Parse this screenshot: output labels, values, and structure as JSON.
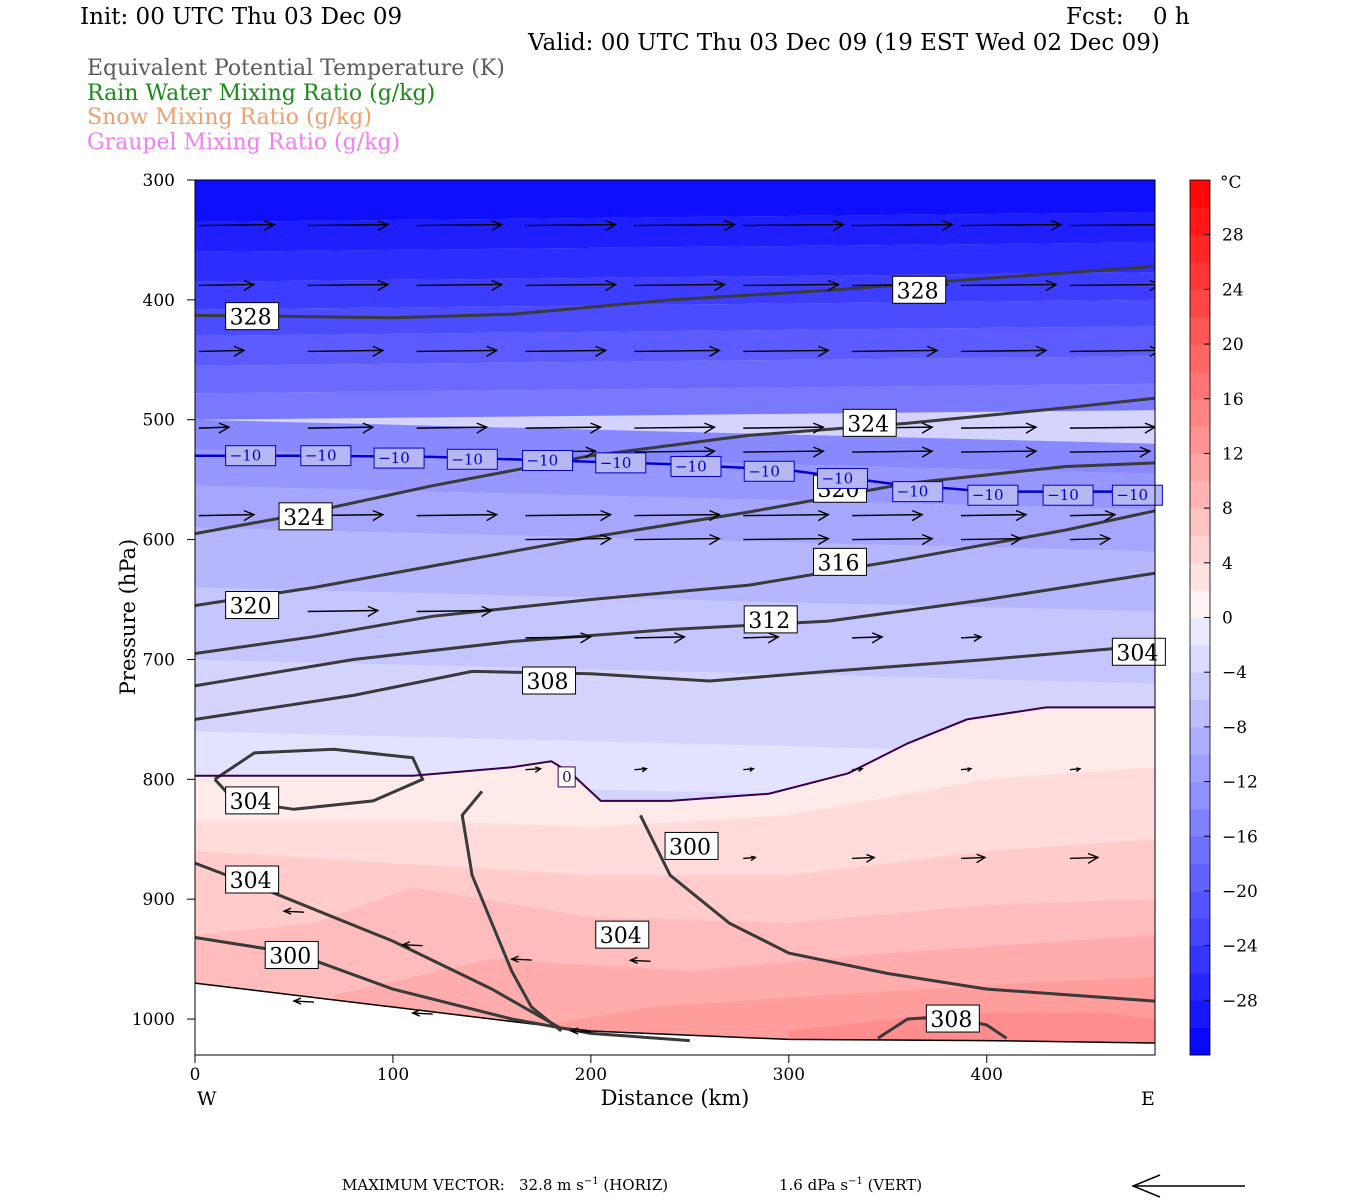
{
  "header": {
    "init": "Init: 00 UTC Thu 03 Dec 09",
    "fcst": "Fcst:    0 h",
    "valid": "Valid: 00 UTC Thu 03 Dec 09 (19 EST Wed 02 Dec 09)"
  },
  "legend": [
    {
      "label": "Equivalent Potential Temperature (K)",
      "color": "#5a5a5a"
    },
    {
      "label": "Rain Water Mixing Ratio (g/kg)",
      "color": "#1a8a1a"
    },
    {
      "label": "Snow Mixing Ratio (g/kg)",
      "color": "#f0a070"
    },
    {
      "label": "Graupel Mixing Ratio (g/kg)",
      "color": "#f080f0"
    }
  ],
  "chart_data": {
    "type": "cross-section",
    "xlabel": "Distance (km)",
    "ylabel": "Pressure (hPa)",
    "xlim": [
      0,
      485
    ],
    "ylim": [
      1030,
      300
    ],
    "x_ticks": [
      "0",
      "100",
      "200",
      "300",
      "400"
    ],
    "y_ticks": [
      "300",
      "400",
      "500",
      "600",
      "700",
      "800",
      "900",
      "1000"
    ],
    "x_end_labels": {
      "left": "W",
      "right": "E"
    },
    "colorbar": {
      "unit": "°C",
      "tick_labels": [
        "28",
        "24",
        "20",
        "16",
        "12",
        "8",
        "4",
        "0",
        "−4",
        "−8",
        "−12",
        "−16",
        "−20",
        "−24",
        "−28"
      ],
      "range": [
        -32,
        32
      ],
      "step": 4
    },
    "temperature_contour": [
      {
        "value": -10,
        "label": "−10",
        "points": [
          [
            0,
            530
          ],
          [
            60,
            530
          ],
          [
            120,
            531
          ],
          [
            180,
            534
          ],
          [
            240,
            537
          ],
          [
            300,
            542
          ],
          [
            350,
            553
          ],
          [
            400,
            560
          ],
          [
            485,
            560
          ]
        ]
      },
      {
        "value": 0,
        "label": "0",
        "points": [
          [
            0,
            797
          ],
          [
            110,
            797
          ],
          [
            160,
            790
          ],
          [
            180,
            785
          ],
          [
            190,
            795
          ],
          [
            205,
            818
          ],
          [
            240,
            818
          ],
          [
            290,
            812
          ],
          [
            330,
            795
          ],
          [
            360,
            770
          ],
          [
            390,
            750
          ],
          [
            430,
            740
          ],
          [
            485,
            740
          ]
        ]
      }
    ],
    "theta_e_contours": [
      {
        "value": 328,
        "label": "328",
        "points": [
          [
            0,
            413
          ],
          [
            60,
            414
          ],
          [
            100,
            415
          ],
          [
            160,
            412
          ],
          [
            240,
            400
          ],
          [
            320,
            392
          ],
          [
            400,
            382
          ],
          [
            485,
            372
          ]
        ]
      },
      {
        "value": 324,
        "label": "324",
        "points": [
          [
            0,
            595
          ],
          [
            50,
            580
          ],
          [
            120,
            555
          ],
          [
            200,
            530
          ],
          [
            280,
            513
          ],
          [
            360,
            503
          ],
          [
            440,
            490
          ],
          [
            485,
            482
          ]
        ]
      },
      {
        "value": 320,
        "label": "320",
        "points": [
          [
            0,
            655
          ],
          [
            60,
            640
          ],
          [
            120,
            622
          ],
          [
            200,
            598
          ],
          [
            280,
            577
          ],
          [
            360,
            553
          ],
          [
            440,
            539
          ],
          [
            485,
            536
          ]
        ]
      },
      {
        "value": 316,
        "label": "316",
        "points": [
          [
            0,
            695
          ],
          [
            60,
            681
          ],
          [
            120,
            664
          ],
          [
            200,
            650
          ],
          [
            280,
            638
          ],
          [
            360,
            616
          ],
          [
            440,
            592
          ],
          [
            485,
            576
          ]
        ]
      },
      {
        "value": 312,
        "label": "312",
        "points": [
          [
            0,
            722
          ],
          [
            80,
            700
          ],
          [
            160,
            685
          ],
          [
            240,
            675
          ],
          [
            320,
            668
          ],
          [
            400,
            650
          ],
          [
            485,
            628
          ]
        ]
      },
      {
        "value": 308,
        "label": "308",
        "points": [
          [
            0,
            750
          ],
          [
            80,
            730
          ],
          [
            140,
            710
          ],
          [
            200,
            712
          ],
          [
            260,
            718
          ],
          [
            320,
            710
          ],
          [
            400,
            700
          ],
          [
            485,
            688
          ]
        ]
      },
      {
        "value": 304,
        "label": "304",
        "points": [
          [
            10,
            800
          ],
          [
            30,
            778
          ],
          [
            70,
            775
          ],
          [
            110,
            782
          ],
          [
            115,
            800
          ],
          [
            90,
            818
          ],
          [
            50,
            825
          ],
          [
            20,
            818
          ],
          [
            10,
            800
          ]
        ]
      },
      {
        "value": 304,
        "label": "304",
        "points": [
          [
            0,
            870
          ],
          [
            40,
            895
          ],
          [
            100,
            935
          ],
          [
            150,
            975
          ],
          [
            185,
            1008
          ]
        ]
      },
      {
        "value": 300,
        "label": "300",
        "points": [
          [
            0,
            932
          ],
          [
            50,
            945
          ],
          [
            100,
            975
          ],
          [
            160,
            1000
          ],
          [
            200,
            1012
          ],
          [
            250,
            1018
          ]
        ]
      },
      {
        "value": 300,
        "label": "300",
        "points": [
          [
            185,
            1010
          ],
          [
            170,
            990
          ],
          [
            160,
            960
          ],
          [
            150,
            920
          ],
          [
            140,
            880
          ],
          [
            135,
            830
          ],
          [
            145,
            810
          ]
        ]
      },
      {
        "value": 304,
        "label": "304",
        "points": [
          [
            225,
            830
          ],
          [
            240,
            880
          ],
          [
            270,
            920
          ],
          [
            300,
            945
          ],
          [
            350,
            962
          ],
          [
            400,
            975
          ],
          [
            485,
            985
          ]
        ]
      },
      {
        "value": 308,
        "label": "308",
        "points": [
          [
            345,
            1016
          ],
          [
            360,
            1000
          ],
          [
            380,
            998
          ],
          [
            400,
            1005
          ],
          [
            410,
            1016
          ]
        ]
      }
    ],
    "contour_labels": [
      {
        "text": "328",
        "x": 18,
        "y": 414
      },
      {
        "text": "328",
        "x": 355,
        "y": 392
      },
      {
        "text": "324",
        "x": 330,
        "y": 503
      },
      {
        "text": "324",
        "x": 45,
        "y": 581
      },
      {
        "text": "320",
        "x": 315,
        "y": 558
      },
      {
        "text": "320",
        "x": 18,
        "y": 655
      },
      {
        "text": "316",
        "x": 315,
        "y": 619
      },
      {
        "text": "312",
        "x": 280,
        "y": 667
      },
      {
        "text": "308",
        "x": 168,
        "y": 718
      },
      {
        "text": "304",
        "x": 18,
        "y": 818
      },
      {
        "text": "304",
        "x": 466,
        "y": 694
      },
      {
        "text": "304",
        "x": 18,
        "y": 884
      },
      {
        "text": "300",
        "x": 240,
        "y": 856
      },
      {
        "text": "304",
        "x": 205,
        "y": 930
      },
      {
        "text": "300",
        "x": 38,
        "y": 947
      },
      {
        "text": "308",
        "x": 372,
        "y": 1000
      }
    ],
    "temp_labels": [
      {
        "text": "−10",
        "x": 18,
        "y": 530
      },
      {
        "text": "−10",
        "x": 56,
        "y": 530
      },
      {
        "text": "−10",
        "x": 93,
        "y": 532
      },
      {
        "text": "−10",
        "x": 130,
        "y": 533
      },
      {
        "text": "−10",
        "x": 168,
        "y": 534
      },
      {
        "text": "−10",
        "x": 205,
        "y": 536
      },
      {
        "text": "−10",
        "x": 243,
        "y": 539
      },
      {
        "text": "−10",
        "x": 280,
        "y": 543
      },
      {
        "text": "−10",
        "x": 317,
        "y": 549
      },
      {
        "text": "−10",
        "x": 355,
        "y": 560
      },
      {
        "text": "−10",
        "x": 393,
        "y": 563
      },
      {
        "text": "−10",
        "x": 431,
        "y": 563
      },
      {
        "text": "−10",
        "x": 466,
        "y": 563
      },
      {
        "text": "0",
        "x": 186,
        "y": 798
      }
    ],
    "max_vector": {
      "prefix": "MAXIMUM VECTOR:",
      "horiz": "32.8 m s",
      "horiz_sup": "−1",
      "horiz_tail": " (HORIZ)",
      "vert": "1.6 dPa s",
      "vert_sup": "−1",
      "vert_tail": " (VERT)"
    }
  }
}
